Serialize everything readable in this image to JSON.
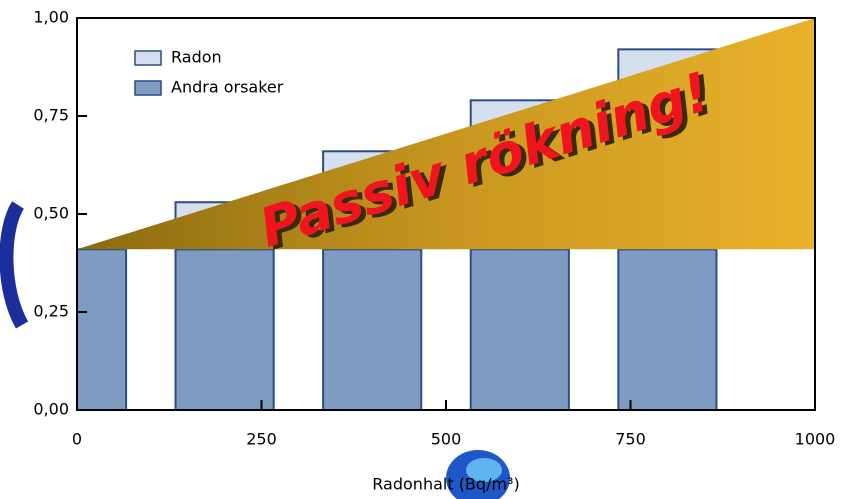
{
  "chart_data": {
    "type": "bar",
    "stacked": true,
    "x": [
      0,
      200,
      400,
      600,
      800
    ],
    "series": [
      {
        "name": "Andra orsaker",
        "color": "#7e9cc2",
        "values": [
          0.41,
          0.41,
          0.41,
          0.41,
          0.41
        ]
      },
      {
        "name": "Radon",
        "color": "#d5e0ef",
        "values": [
          0,
          0.12,
          0.25,
          0.38,
          0.51
        ]
      }
    ],
    "xlim": [
      0,
      1000
    ],
    "xticks": [
      0,
      250,
      500,
      750,
      1000
    ],
    "ylim": [
      0,
      1
    ],
    "yticks": [
      {
        "value": 0,
        "label": "0,00"
      },
      {
        "value": 0.25,
        "label": "0,25"
      },
      {
        "value": 0.5,
        "label": "0,50"
      },
      {
        "value": 0.75,
        "label": "0,75"
      },
      {
        "value": 1,
        "label": "1,00"
      }
    ],
    "xlabel": "Radonhalt (Bq/m³)",
    "annotation": "Passiv rökning!",
    "legend": "upper left"
  }
}
